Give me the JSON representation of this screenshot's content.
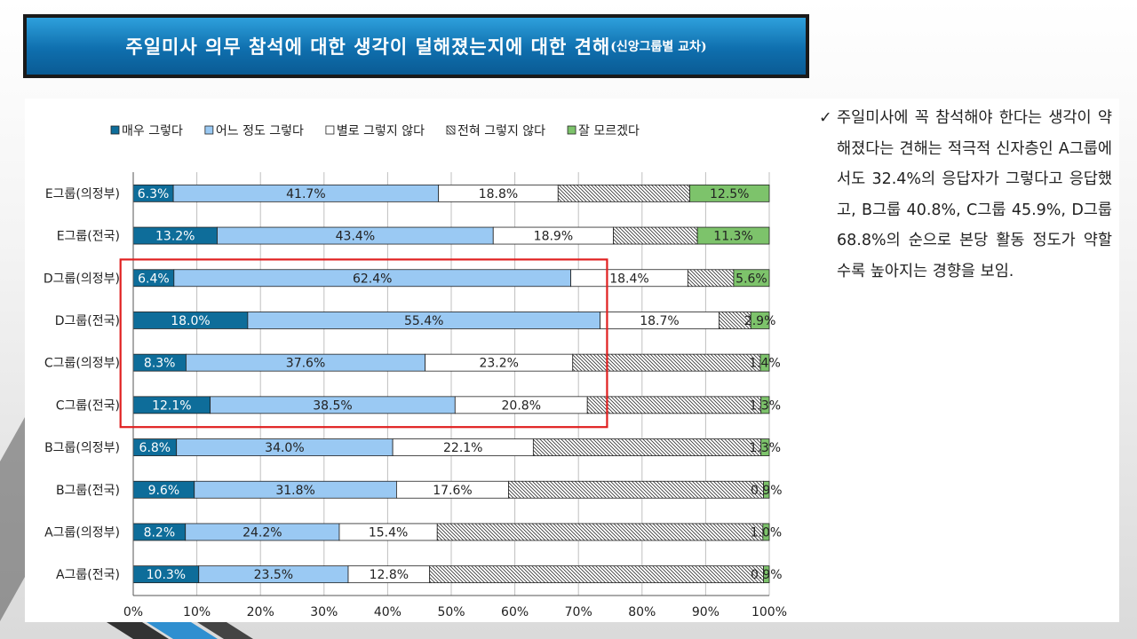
{
  "title": {
    "main": "주일미사 의무 참석에 대한 생각이 덜해졌는지에 대한 견해",
    "sub": "(신앙그룹별 교차)"
  },
  "note": {
    "bullet": "✓",
    "text": "주일미사에 꼭 참석해야 한다는 생각이 약해졌다는 견해는 적극적 신자층인 A그룹에서도 32.4%의 응답자가 그렇다고 응답했고, B그룹 40.8%, C그룹 45.9%, D그룹 68.8%의 순으로 본당 활동 정도가 약할 수록 높아지는 경향을 보임."
  },
  "chart_data": {
    "type": "bar",
    "orientation": "horizontal",
    "stacked": "percent",
    "categories": [
      "E그룹(의정부)",
      "E그룹(전국)",
      "D그룹(의정부)",
      "D그룹(전국)",
      "C그룹(의정부)",
      "C그룹(전국)",
      "B그룹(의정부)",
      "B그룹(전국)",
      "A그룹(의정부)",
      "A그룹(전국)"
    ],
    "series": [
      {
        "name": "매우 그렇다",
        "color": "#0e6d9a",
        "pattern": "solid",
        "values": [
          6.3,
          13.2,
          6.4,
          18.0,
          8.3,
          12.1,
          6.8,
          9.6,
          8.2,
          10.3
        ],
        "labels": [
          "6.3%",
          "13.2%",
          "6.4%",
          "18.0%",
          "8.3%",
          "12.1%",
          "6.8%",
          "9.6%",
          "8.2%",
          "10.3%"
        ]
      },
      {
        "name": "어느 정도 그렇다",
        "color": "#9ac9f3",
        "pattern": "solid",
        "values": [
          41.7,
          43.4,
          62.4,
          55.4,
          37.6,
          38.5,
          34.0,
          31.8,
          24.2,
          23.5
        ],
        "labels": [
          "41.7%",
          "43.4%",
          "62.4%",
          "55.4%",
          "37.6%",
          "38.5%",
          "34.0%",
          "31.8%",
          "24.2%",
          "23.5%"
        ]
      },
      {
        "name": "별로 그렇지 않다",
        "color": "#ffffff",
        "pattern": "solid",
        "values": [
          18.8,
          18.9,
          18.4,
          18.7,
          23.2,
          20.8,
          22.1,
          17.6,
          15.4,
          12.8
        ],
        "labels": [
          "18.8%",
          "18.9%",
          "18.4%",
          "18.7%",
          "23.2%",
          "20.8%",
          "22.1%",
          "17.6%",
          "15.4%",
          "12.8%"
        ]
      },
      {
        "name": "전혀 그렇지 않다",
        "color": "#ffffff",
        "pattern": "hatch",
        "values": [
          20.7,
          13.2,
          7.2,
          5.0,
          29.5,
          27.3,
          35.8,
          40.1,
          51.2,
          52.5
        ],
        "labels": []
      },
      {
        "name": "잘 모르겠다",
        "color": "#7dc36b",
        "pattern": "solid",
        "values": [
          12.5,
          11.3,
          5.6,
          2.9,
          1.4,
          1.3,
          1.3,
          0.9,
          1.0,
          0.9
        ],
        "labels": [
          "12.5%",
          "11.3%",
          "5.6%",
          "2.9%",
          "1.4%",
          "1.3%",
          "1.3%",
          "0.9%",
          "1.0%",
          "0.9%"
        ]
      }
    ],
    "xlim": [
      0,
      100
    ],
    "xticks": [
      "0%",
      "10%",
      "20%",
      "30%",
      "40%",
      "50%",
      "60%",
      "70%",
      "80%",
      "90%",
      "100%"
    ],
    "grid": true,
    "legend": "top",
    "highlight_box": {
      "from": "D그룹(의정부)",
      "to": "C그룹(전국)",
      "color": "#e02020"
    }
  }
}
